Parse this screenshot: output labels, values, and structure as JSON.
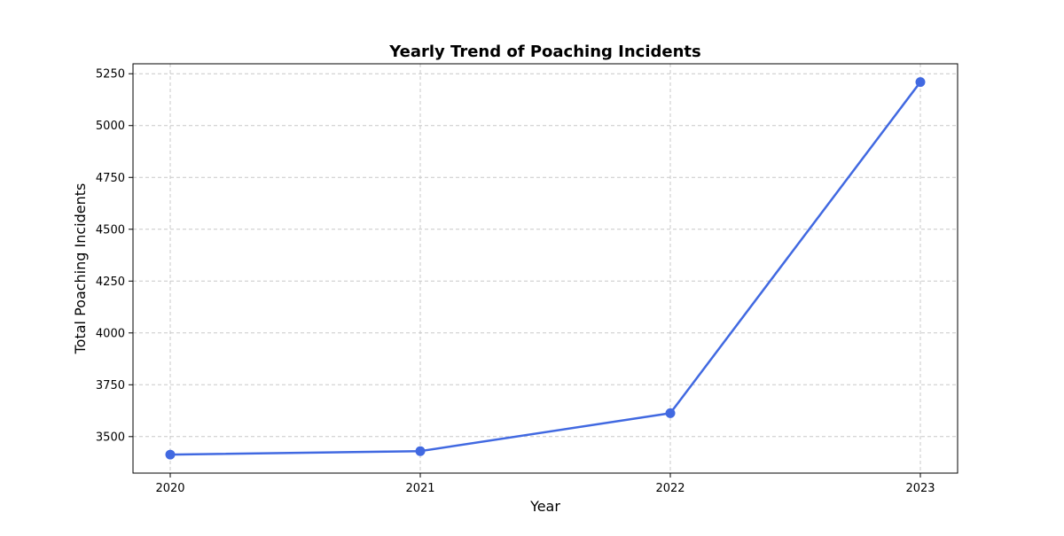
{
  "chart_data": {
    "type": "line",
    "title": "Yearly Trend of Poaching Incidents",
    "xlabel": "Year",
    "ylabel": "Total Poaching Incidents",
    "x": [
      "2020",
      "2021",
      "2022",
      "2023"
    ],
    "series": [
      {
        "values": [
          3413,
          3430,
          3613,
          5210
        ]
      }
    ],
    "yticks": [
      3500,
      3750,
      4000,
      4250,
      4500,
      4750,
      5000,
      5250
    ],
    "ylim": [
      3324,
      5298
    ],
    "grid": true,
    "grid_style": "dashed",
    "line_color": "#4169e1",
    "marker": "circle"
  }
}
